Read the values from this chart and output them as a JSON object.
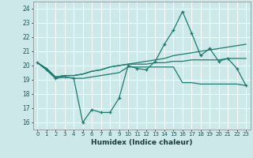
{
  "title": "",
  "xlabel": "Humidex (Indice chaleur)",
  "ylabel": "",
  "xlim": [
    -0.5,
    23.5
  ],
  "ylim": [
    15.5,
    24.5
  ],
  "yticks": [
    16,
    17,
    18,
    19,
    20,
    21,
    22,
    23,
    24
  ],
  "xticks": [
    0,
    1,
    2,
    3,
    4,
    5,
    6,
    7,
    8,
    9,
    10,
    11,
    12,
    13,
    14,
    15,
    16,
    17,
    18,
    19,
    20,
    21,
    22,
    23
  ],
  "bg_color": "#cce8e8",
  "grid_color": "#ffffff",
  "line_color": "#1a7a6e",
  "series": [
    [
      20.2,
      19.7,
      19.1,
      19.2,
      19.1,
      16.0,
      16.9,
      16.7,
      16.7,
      17.7,
      20.0,
      19.8,
      19.7,
      20.3,
      21.5,
      22.5,
      23.8,
      22.3,
      20.7,
      21.2,
      20.3,
      20.5,
      19.8,
      18.6
    ],
    [
      20.2,
      19.7,
      19.1,
      19.2,
      19.1,
      19.1,
      19.2,
      19.3,
      19.4,
      19.5,
      19.9,
      19.9,
      19.9,
      19.9,
      19.9,
      19.9,
      18.8,
      18.8,
      18.7,
      18.7,
      18.7,
      18.7,
      18.7,
      18.6
    ],
    [
      20.2,
      19.8,
      19.2,
      19.3,
      19.3,
      19.4,
      19.6,
      19.7,
      19.9,
      20.0,
      20.1,
      20.1,
      20.1,
      20.2,
      20.2,
      20.3,
      20.3,
      20.4,
      20.4,
      20.4,
      20.4,
      20.5,
      20.5,
      20.5
    ],
    [
      20.2,
      19.8,
      19.2,
      19.3,
      19.3,
      19.4,
      19.6,
      19.7,
      19.9,
      20.0,
      20.1,
      20.2,
      20.3,
      20.4,
      20.5,
      20.7,
      20.8,
      20.9,
      21.0,
      21.1,
      21.2,
      21.3,
      21.4,
      21.5
    ]
  ]
}
